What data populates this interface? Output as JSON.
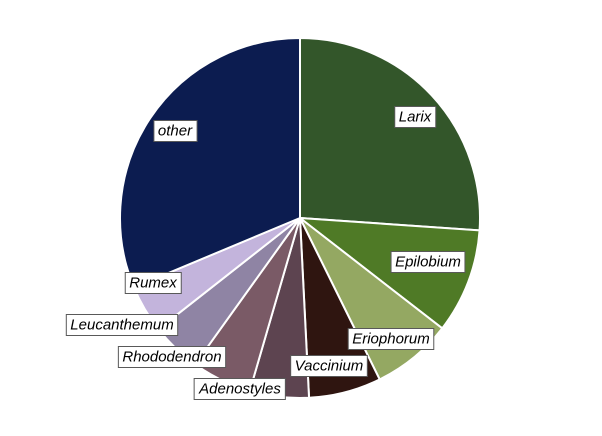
{
  "chart_data": {
    "type": "pie",
    "title": "",
    "start_angle_deg": 0,
    "direction": "clockwise",
    "slices": [
      {
        "label": "Larix",
        "value": 26.1,
        "color": "#33562a"
      },
      {
        "label": "Epilobium",
        "value": 9.4,
        "color": "#4f7a26"
      },
      {
        "label": "Eriophorum",
        "value": 7.2,
        "color": "#94a862"
      },
      {
        "label": "Vaccinium",
        "value": 6.5,
        "color": "#2f1510"
      },
      {
        "label": "Adenostyles",
        "value": 5.3,
        "color": "#5d4450"
      },
      {
        "label": "Rhododendron",
        "value": 5.4,
        "color": "#7a5a66"
      },
      {
        "label": "Leucanthemum",
        "value": 4.5,
        "color": "#8f84a4"
      },
      {
        "label": "Rumex",
        "value": 4.3,
        "color": "#c3b4dc"
      },
      {
        "label": "other",
        "value": 31.3,
        "color": "#0c1c50"
      }
    ]
  }
}
